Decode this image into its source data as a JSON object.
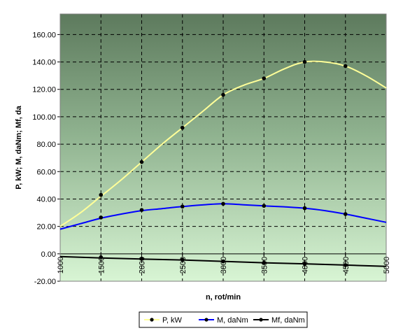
{
  "chart_data": {
    "type": "line",
    "xlabel": "n, rot/min",
    "ylabel": "P, kW; M, daNm; Mf, da",
    "xlim": [
      1000,
      5000
    ],
    "ylim": [
      -20,
      175
    ],
    "x_ticks": [
      1000,
      1500,
      2000,
      2500,
      3000,
      3500,
      4000,
      4500,
      5000
    ],
    "x_tick_labels": [
      "1000",
      "1500",
      "2000",
      "2500",
      "3000",
      "3500",
      "4000",
      "4500",
      "5000"
    ],
    "y_ticks": [
      -20,
      0,
      20,
      40,
      60,
      80,
      100,
      120,
      140,
      160
    ],
    "y_tick_labels": [
      "-20.00",
      "0.00",
      "20.00",
      "40.00",
      "60.00",
      "80.00",
      "100.00",
      "120.00",
      "140.00",
      "160.00"
    ],
    "grid": true,
    "legend_position": "bottom",
    "series": [
      {
        "name": "P, kW",
        "color": "#ffff99",
        "marker_color": "#000000",
        "line_x": [
          1000,
          1250,
          1500,
          1750,
          2000,
          2250,
          2500,
          2750,
          3000,
          3250,
          3500,
          3750,
          4000,
          4250,
          4500,
          4750,
          5000
        ],
        "line_y": [
          20,
          30,
          42,
          54,
          67,
          80,
          92,
          104,
          116,
          123,
          128,
          135,
          140,
          140,
          137,
          130,
          121
        ],
        "points_x": [
          1500,
          2000,
          2500,
          3000,
          3500,
          4000,
          4500
        ],
        "points_y": [
          43,
          67,
          92,
          116,
          128,
          140,
          137
        ]
      },
      {
        "name": "M, daNm",
        "color": "#0000ff",
        "marker_color": "#000000",
        "line_x": [
          1000,
          1250,
          1500,
          1750,
          2000,
          2250,
          2500,
          2750,
          3000,
          3250,
          3500,
          3750,
          4000,
          4250,
          4500,
          4750,
          5000
        ],
        "line_y": [
          18,
          22,
          26,
          29,
          31.5,
          33,
          34.5,
          35.7,
          36.5,
          35.8,
          35,
          34.3,
          33.3,
          31.5,
          29,
          26,
          23
        ],
        "points_x": [
          1500,
          2000,
          2500,
          3000,
          3500,
          4000,
          4500
        ],
        "points_y": [
          26.5,
          32,
          34.5,
          36.5,
          35,
          33.3,
          29
        ]
      },
      {
        "name": "Mf, daNm",
        "color": "#000000",
        "marker_color": "#000000",
        "line_x": [
          1000,
          1500,
          2000,
          2500,
          3000,
          3500,
          4000,
          4500,
          5000
        ],
        "line_y": [
          -2,
          -3,
          -3.8,
          -4.5,
          -5.5,
          -6.5,
          -7.3,
          -8.2,
          -9.2
        ],
        "points_x": [
          1500,
          2000,
          2500,
          3000,
          3500,
          4000,
          4500
        ],
        "points_y": [
          -2.5,
          -3.5,
          -4.3,
          -5.5,
          -6.5,
          -7.3,
          -8.2
        ]
      }
    ]
  }
}
